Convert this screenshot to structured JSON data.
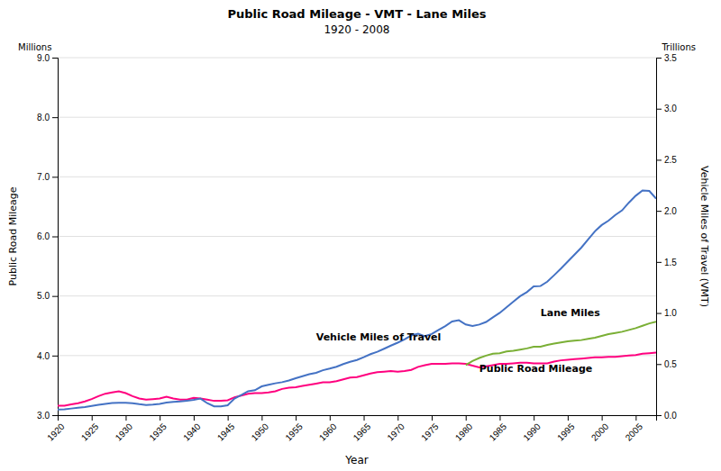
{
  "chart_data": {
    "type": "line",
    "title": "Public Road Mileage - VMT - Lane Miles",
    "subtitle": "1920 - 2008",
    "xlabel": "Year",
    "ylabel": "Public Road Mileage",
    "y2label": "Vehicle Miles of Travel (VMT)",
    "yunit": "Millions",
    "y2unit": "Trillions",
    "xlim": [
      1920,
      2008
    ],
    "xticks": [
      1920,
      1925,
      1930,
      1935,
      1940,
      1945,
      1950,
      1955,
      1960,
      1965,
      1970,
      1975,
      1980,
      1985,
      1990,
      1995,
      2000,
      2005
    ],
    "ylim": [
      3.0,
      9.0
    ],
    "yticks": [
      {
        "value": 3,
        "label": "3.0"
      },
      {
        "value": 4,
        "label": "4.0"
      },
      {
        "value": 5,
        "label": "5.0"
      },
      {
        "value": 6,
        "label": "6.0"
      },
      {
        "value": 7,
        "label": "7.0"
      },
      {
        "value": 8,
        "label": "8.0"
      },
      {
        "value": 9,
        "label": "9.0"
      }
    ],
    "y2lim": [
      0.0,
      3.5
    ],
    "y2ticks": [
      {
        "value": 0,
        "label": "0.0"
      },
      0.5,
      {
        "value": 1,
        "label": "1.0"
      },
      1.5,
      {
        "value": 2,
        "label": "2.0"
      },
      2.5,
      {
        "value": 3,
        "label": "3.0"
      },
      3.5
    ],
    "grid": true,
    "series": [
      {
        "color": "#FF007F",
        "axis": "y",
        "x": [
          1920,
          1921,
          1922,
          1923,
          1924,
          1925,
          1926,
          1927,
          1928,
          1929,
          1930,
          1931,
          1932,
          1933,
          1934,
          1935,
          1936,
          1937,
          1938,
          1939,
          1940,
          1941,
          1942,
          1943,
          1944,
          1945,
          1946,
          1947,
          1948,
          1949,
          1950,
          1951,
          1952,
          1953,
          1954,
          1955,
          1956,
          1957,
          1958,
          1959,
          1960,
          1961,
          1962,
          1963,
          1964,
          1965,
          1966,
          1967,
          1968,
          1969,
          1970,
          1971,
          1972,
          1973,
          1974,
          1975,
          1976,
          1977,
          1978,
          1979,
          1980,
          1981,
          1982,
          1983,
          1984,
          1985,
          1986,
          1987,
          1988,
          1989,
          1990,
          1991,
          1992,
          1993,
          1994,
          1995,
          1996,
          1997,
          1998,
          1999,
          2000,
          2001,
          2002,
          2003,
          2004,
          2005,
          2006,
          2007,
          2008
        ],
        "values": [
          3.16,
          3.16,
          3.18,
          3.2,
          3.23,
          3.27,
          3.32,
          3.36,
          3.38,
          3.4,
          3.37,
          3.32,
          3.28,
          3.26,
          3.27,
          3.28,
          3.31,
          3.28,
          3.26,
          3.26,
          3.29,
          3.28,
          3.26,
          3.24,
          3.24,
          3.25,
          3.3,
          3.33,
          3.36,
          3.37,
          3.37,
          3.38,
          3.4,
          3.44,
          3.46,
          3.47,
          3.49,
          3.51,
          3.53,
          3.55,
          3.55,
          3.57,
          3.6,
          3.63,
          3.64,
          3.67,
          3.7,
          3.72,
          3.73,
          3.74,
          3.73,
          3.74,
          3.76,
          3.81,
          3.84,
          3.86,
          3.86,
          3.86,
          3.87,
          3.87,
          3.86,
          3.83,
          3.8,
          3.82,
          3.84,
          3.86,
          3.86,
          3.87,
          3.88,
          3.88,
          3.87,
          3.87,
          3.87,
          3.9,
          3.92,
          3.93,
          3.94,
          3.95,
          3.96,
          3.97,
          3.97,
          3.98,
          3.98,
          3.99,
          4.0,
          4.01,
          4.03,
          4.04,
          4.05
        ]
      },
      {
        "color": "#7AAF35",
        "axis": "y",
        "x": [
          1980,
          1981,
          1982,
          1983,
          1984,
          1985,
          1986,
          1987,
          1988,
          1989,
          1990,
          1991,
          1992,
          1993,
          1994,
          1995,
          1996,
          1997,
          1998,
          1999,
          2000,
          2001,
          2002,
          2003,
          2004,
          2005,
          2006,
          2007,
          2008
        ],
        "values": [
          3.84,
          3.91,
          3.96,
          4.0,
          4.03,
          4.04,
          4.07,
          4.08,
          4.1,
          4.12,
          4.15,
          4.15,
          4.18,
          4.2,
          4.22,
          4.24,
          4.25,
          4.26,
          4.28,
          4.3,
          4.33,
          4.36,
          4.38,
          4.4,
          4.43,
          4.46,
          4.5,
          4.54,
          4.57
        ]
      },
      {
        "color": "#4472C4",
        "axis": "y2",
        "x": [
          1920,
          1921,
          1922,
          1923,
          1924,
          1925,
          1926,
          1927,
          1928,
          1929,
          1930,
          1931,
          1932,
          1933,
          1934,
          1935,
          1936,
          1937,
          1938,
          1939,
          1940,
          1941,
          1942,
          1943,
          1944,
          1945,
          1946,
          1947,
          1948,
          1949,
          1950,
          1951,
          1952,
          1953,
          1954,
          1955,
          1956,
          1957,
          1958,
          1959,
          1960,
          1961,
          1962,
          1963,
          1964,
          1965,
          1966,
          1967,
          1968,
          1969,
          1970,
          1971,
          1972,
          1973,
          1974,
          1975,
          1976,
          1977,
          1978,
          1979,
          1980,
          1981,
          1982,
          1983,
          1984,
          1985,
          1986,
          1987,
          1988,
          1989,
          1990,
          1991,
          1992,
          1993,
          1994,
          1995,
          1996,
          1997,
          1998,
          1999,
          2000,
          2001,
          2002,
          2003,
          2004,
          2005,
          2006,
          2007,
          2008
        ],
        "values": [
          0.055,
          0.058,
          0.065,
          0.072,
          0.08,
          0.091,
          0.101,
          0.11,
          0.118,
          0.122,
          0.122,
          0.116,
          0.107,
          0.1,
          0.104,
          0.111,
          0.123,
          0.13,
          0.134,
          0.14,
          0.15,
          0.162,
          0.117,
          0.086,
          0.086,
          0.097,
          0.163,
          0.197,
          0.234,
          0.244,
          0.282,
          0.298,
          0.312,
          0.323,
          0.339,
          0.362,
          0.382,
          0.401,
          0.415,
          0.44,
          0.456,
          0.474,
          0.5,
          0.522,
          0.54,
          0.567,
          0.597,
          0.62,
          0.65,
          0.681,
          0.71,
          0.742,
          0.78,
          0.798,
          0.773,
          0.794,
          0.835,
          0.872,
          0.917,
          0.929,
          0.888,
          0.873,
          0.887,
          0.912,
          0.958,
          1.001,
          1.056,
          1.11,
          1.165,
          1.205,
          1.26,
          1.264,
          1.307,
          1.37,
          1.435,
          1.503,
          1.571,
          1.64,
          1.72,
          1.8,
          1.861,
          1.904,
          1.96,
          2.005,
          2.081,
          2.148,
          2.2,
          2.195,
          2.12
        ]
      }
    ],
    "annotations": [
      {
        "text": "Public Road Mileage",
        "x": 1982,
        "y": 3.73,
        "axis": "y"
      },
      {
        "text": "Vehicle Miles of Travel",
        "x": 1958,
        "y": 0.73,
        "axis": "y2"
      },
      {
        "text": "Lane Miles",
        "x": 1991,
        "y": 4.67,
        "axis": "y"
      }
    ]
  }
}
